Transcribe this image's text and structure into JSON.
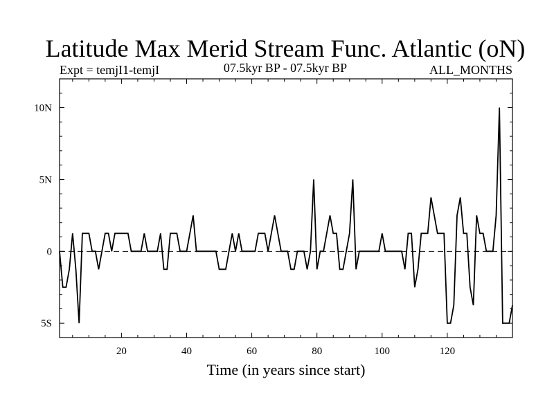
{
  "chart_data": {
    "type": "line",
    "title": "Latitude Max Merid Stream Func. Atlantic (oN)",
    "subtitle_left": "Expt = temjI1-temjI",
    "subtitle_center": "07.5kyr BP - 07.5kyr BP",
    "subtitle_right": "ALL_MONTHS",
    "xlabel": "Time (in years since start)",
    "ylabel": "",
    "xlim": [
      1,
      140
    ],
    "ylim": [
      -6,
      12
    ],
    "x_ticks": [
      {
        "value": 20,
        "label": "20"
      },
      {
        "value": 40,
        "label": "40"
      },
      {
        "value": 60,
        "label": "60"
      },
      {
        "value": 80,
        "label": "80"
      },
      {
        "value": 100,
        "label": "100"
      },
      {
        "value": 120,
        "label": "120"
      }
    ],
    "y_ticks": [
      {
        "value": 10,
        "label": "10N"
      },
      {
        "value": 5,
        "label": "5N"
      },
      {
        "value": 0,
        "label": "0"
      },
      {
        "value": -5,
        "label": "5S"
      }
    ],
    "zero_line": "dashed",
    "grid": false,
    "series": [
      {
        "name": "Latitude Max Merid Stream Func. Atlantic",
        "color": "#000000",
        "x": [
          1,
          2,
          3,
          4,
          5,
          6,
          7,
          8,
          9,
          10,
          11,
          12,
          13,
          14,
          15,
          16,
          17,
          18,
          19,
          20,
          21,
          22,
          23,
          24,
          25,
          26,
          27,
          28,
          29,
          30,
          31,
          32,
          33,
          34,
          35,
          36,
          37,
          38,
          39,
          40,
          41,
          42,
          43,
          44,
          45,
          46,
          47,
          48,
          49,
          50,
          51,
          52,
          53,
          54,
          55,
          56,
          57,
          58,
          59,
          60,
          61,
          62,
          63,
          64,
          65,
          66,
          67,
          68,
          69,
          70,
          71,
          72,
          73,
          74,
          75,
          76,
          77,
          78,
          79,
          80,
          81,
          82,
          83,
          84,
          85,
          86,
          87,
          88,
          89,
          90,
          91,
          92,
          93,
          94,
          95,
          96,
          97,
          98,
          99,
          100,
          101,
          102,
          103,
          104,
          105,
          106,
          107,
          108,
          109,
          110,
          111,
          112,
          113,
          114,
          115,
          116,
          117,
          118,
          119,
          120,
          121,
          122,
          123,
          124,
          125,
          126,
          127,
          128,
          129,
          130,
          131,
          132,
          133,
          134,
          135,
          136,
          137,
          138,
          139,
          140
        ],
        "values": [
          0,
          -2.5,
          -2.5,
          -1.25,
          1.25,
          -1.25,
          -5,
          1.25,
          1.25,
          1.25,
          0,
          0,
          -1.25,
          0,
          1.25,
          1.25,
          0,
          1.25,
          1.25,
          1.25,
          1.25,
          1.25,
          0,
          0,
          0,
          0,
          1.25,
          0,
          0,
          0,
          0,
          1.25,
          -1.25,
          -1.25,
          1.25,
          1.25,
          1.25,
          0,
          0,
          0,
          1.25,
          2.5,
          0,
          0,
          0,
          0,
          0,
          0,
          0,
          -1.25,
          -1.25,
          -1.25,
          0,
          1.25,
          0,
          1.25,
          0,
          0,
          0,
          0,
          0,
          1.25,
          1.25,
          1.25,
          0,
          1.25,
          2.5,
          1.25,
          0,
          0,
          0,
          -1.25,
          -1.25,
          0,
          0,
          0,
          -1.25,
          0,
          5,
          -1.25,
          0,
          0,
          1.25,
          2.5,
          1.25,
          1.25,
          -1.25,
          -1.25,
          0,
          1.25,
          5,
          -1.25,
          0,
          0,
          0,
          0,
          0,
          0,
          0,
          1.25,
          0,
          0,
          0,
          0,
          0,
          0,
          -1.25,
          1.25,
          1.25,
          -2.5,
          -1.25,
          1.25,
          1.25,
          1.25,
          3.75,
          2.5,
          1.25,
          1.25,
          1.25,
          -5,
          -5,
          -3.75,
          2.5,
          3.75,
          1.25,
          1.25,
          -2.5,
          -3.75,
          2.5,
          1.25,
          1.25,
          0,
          0,
          0,
          2.5,
          10,
          -5,
          -5,
          -5,
          -3.75
        ]
      }
    ]
  }
}
